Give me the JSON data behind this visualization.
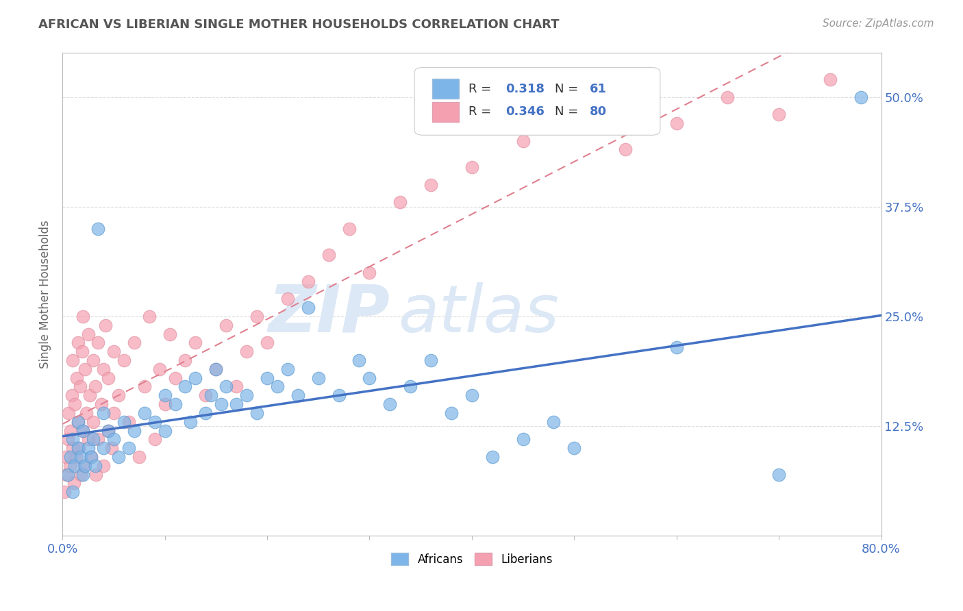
{
  "title": "AFRICAN VS LIBERIAN SINGLE MOTHER HOUSEHOLDS CORRELATION CHART",
  "source_text": "Source: ZipAtlas.com",
  "ylabel": "Single Mother Households",
  "xlim": [
    0.0,
    0.8
  ],
  "ylim": [
    0.0,
    0.55
  ],
  "ytick_positions": [
    0.0,
    0.125,
    0.25,
    0.375,
    0.5
  ],
  "ytick_labels": [
    "",
    "12.5%",
    "25.0%",
    "37.5%",
    "50.0%"
  ],
  "watermark_zip": "ZIP",
  "watermark_atlas": "atlas",
  "african_color": "#7EB5E8",
  "liberian_color": "#F4A0B0",
  "african_line_color": "#4472C4",
  "liberian_line_color": "#E08090",
  "african_R": 0.318,
  "african_N": 61,
  "liberian_R": 0.346,
  "liberian_N": 80,
  "background_color": "#FFFFFF",
  "grid_color": "#DDDDDD",
  "africans_x": [
    0.005,
    0.008,
    0.01,
    0.01,
    0.012,
    0.015,
    0.015,
    0.018,
    0.02,
    0.02,
    0.022,
    0.025,
    0.028,
    0.03,
    0.032,
    0.035,
    0.04,
    0.04,
    0.045,
    0.05,
    0.055,
    0.06,
    0.065,
    0.07,
    0.08,
    0.09,
    0.1,
    0.1,
    0.11,
    0.12,
    0.125,
    0.13,
    0.14,
    0.145,
    0.15,
    0.155,
    0.16,
    0.17,
    0.18,
    0.19,
    0.2,
    0.21,
    0.22,
    0.23,
    0.24,
    0.25,
    0.27,
    0.29,
    0.3,
    0.32,
    0.34,
    0.36,
    0.38,
    0.4,
    0.42,
    0.45,
    0.48,
    0.5,
    0.6,
    0.7,
    0.78
  ],
  "africans_y": [
    0.07,
    0.09,
    0.05,
    0.11,
    0.08,
    0.1,
    0.13,
    0.09,
    0.07,
    0.12,
    0.08,
    0.1,
    0.09,
    0.11,
    0.08,
    0.35,
    0.1,
    0.14,
    0.12,
    0.11,
    0.09,
    0.13,
    0.1,
    0.12,
    0.14,
    0.13,
    0.16,
    0.12,
    0.15,
    0.17,
    0.13,
    0.18,
    0.14,
    0.16,
    0.19,
    0.15,
    0.17,
    0.15,
    0.16,
    0.14,
    0.18,
    0.17,
    0.19,
    0.16,
    0.26,
    0.18,
    0.16,
    0.2,
    0.18,
    0.15,
    0.17,
    0.2,
    0.14,
    0.16,
    0.09,
    0.11,
    0.13,
    0.1,
    0.215,
    0.07,
    0.5
  ],
  "liberians_x": [
    0.002,
    0.003,
    0.004,
    0.005,
    0.006,
    0.007,
    0.008,
    0.009,
    0.01,
    0.01,
    0.011,
    0.012,
    0.013,
    0.014,
    0.015,
    0.015,
    0.016,
    0.017,
    0.018,
    0.019,
    0.02,
    0.02,
    0.021,
    0.022,
    0.023,
    0.025,
    0.025,
    0.027,
    0.028,
    0.03,
    0.03,
    0.032,
    0.033,
    0.035,
    0.035,
    0.038,
    0.04,
    0.04,
    0.042,
    0.045,
    0.045,
    0.048,
    0.05,
    0.05,
    0.055,
    0.06,
    0.065,
    0.07,
    0.075,
    0.08,
    0.085,
    0.09,
    0.095,
    0.1,
    0.105,
    0.11,
    0.12,
    0.13,
    0.14,
    0.15,
    0.16,
    0.17,
    0.18,
    0.19,
    0.2,
    0.22,
    0.24,
    0.26,
    0.28,
    0.3,
    0.33,
    0.36,
    0.4,
    0.45,
    0.5,
    0.55,
    0.6,
    0.65,
    0.7,
    0.75
  ],
  "liberians_y": [
    0.05,
    0.09,
    0.07,
    0.11,
    0.14,
    0.08,
    0.12,
    0.16,
    0.1,
    0.2,
    0.06,
    0.15,
    0.09,
    0.18,
    0.13,
    0.22,
    0.1,
    0.17,
    0.07,
    0.21,
    0.12,
    0.25,
    0.08,
    0.19,
    0.14,
    0.11,
    0.23,
    0.16,
    0.09,
    0.2,
    0.13,
    0.17,
    0.07,
    0.22,
    0.11,
    0.15,
    0.19,
    0.08,
    0.24,
    0.12,
    0.18,
    0.1,
    0.21,
    0.14,
    0.16,
    0.2,
    0.13,
    0.22,
    0.09,
    0.17,
    0.25,
    0.11,
    0.19,
    0.15,
    0.23,
    0.18,
    0.2,
    0.22,
    0.16,
    0.19,
    0.24,
    0.17,
    0.21,
    0.25,
    0.22,
    0.27,
    0.29,
    0.32,
    0.35,
    0.3,
    0.38,
    0.4,
    0.42,
    0.45,
    0.48,
    0.44,
    0.47,
    0.5,
    0.48,
    0.52
  ]
}
